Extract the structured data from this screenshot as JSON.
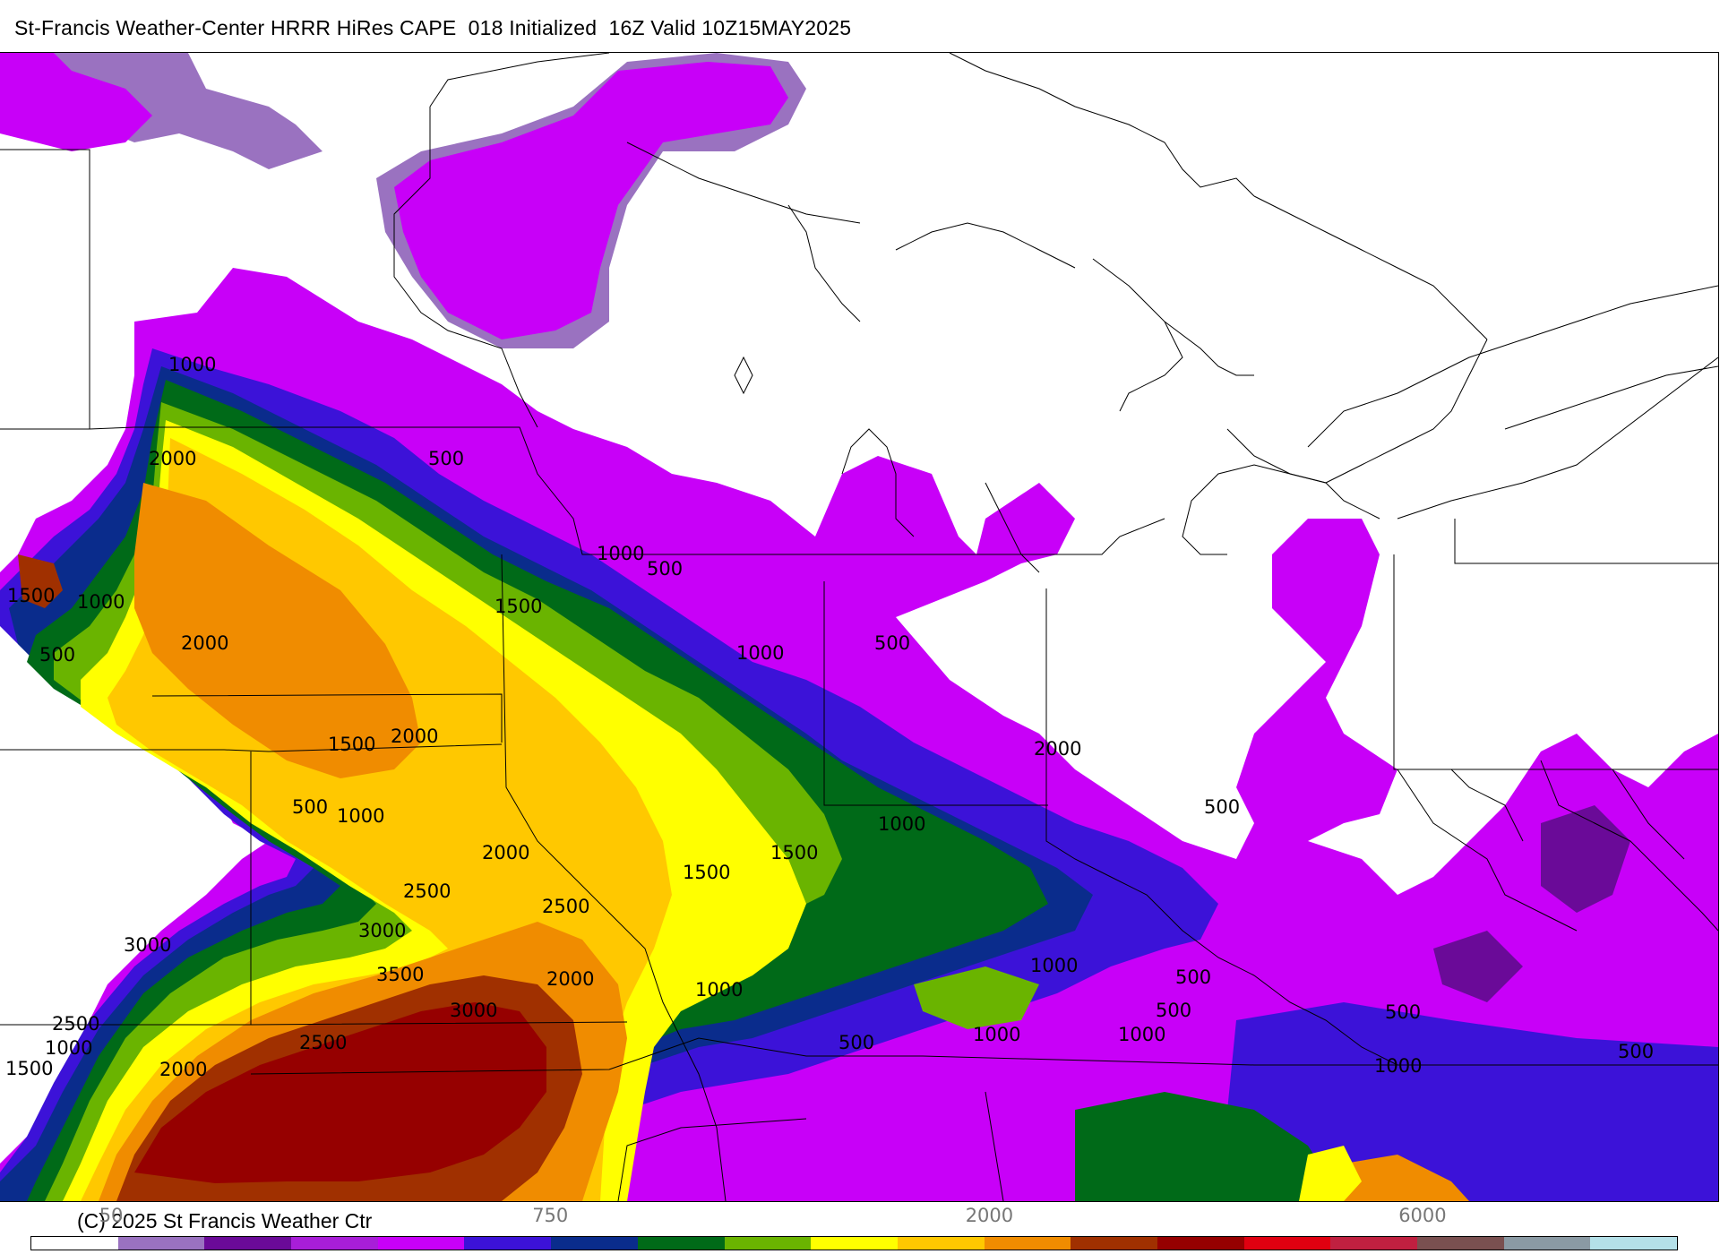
{
  "header": {
    "title": "St-Francis Weather-Center HRRR HiRes CAPE  018 Initialized  16Z Valid 10Z15MAY2025"
  },
  "footer": {
    "copyright": "(C) 2025 St Francis Weather Ctr"
  },
  "colorbar": {
    "colors": [
      "#ffffff",
      "#9a72c0",
      "#6a0a98",
      "#a81ed8",
      "#c800f8",
      "#3c12d8",
      "#0a2c8c",
      "#006a18",
      "#6ab400",
      "#ffff00",
      "#ffc800",
      "#f08c00",
      "#a03000",
      "#960000",
      "#e00010",
      "#c02040",
      "#7a5050",
      "#8a9aa4",
      "#b4e0e8"
    ],
    "tick_labels": [
      {
        "text": "50",
        "slot": 1
      },
      {
        "text": "750",
        "slot": 6
      },
      {
        "text": "2000",
        "slot": 11
      },
      {
        "text": "6000",
        "slot": 16
      }
    ]
  },
  "map": {
    "contour_labels": [
      "1000",
      "2000",
      "500",
      "1000",
      "500",
      "1500",
      "1500",
      "1000",
      "2000",
      "500",
      "1000",
      "500",
      "2000",
      "1500",
      "2000",
      "500",
      "1000",
      "1000",
      "500",
      "1500",
      "1500",
      "2000",
      "2500",
      "2500",
      "3000",
      "3000",
      "2000",
      "3500",
      "3000",
      "2500",
      "2500",
      "1000",
      "500",
      "1000",
      "2000",
      "500",
      "1000",
      "1000",
      "1000",
      "500",
      "500",
      "1500",
      "1000",
      "500"
    ]
  },
  "colors": {
    "map_background": "#ffffff",
    "state_lines": "#000000"
  }
}
